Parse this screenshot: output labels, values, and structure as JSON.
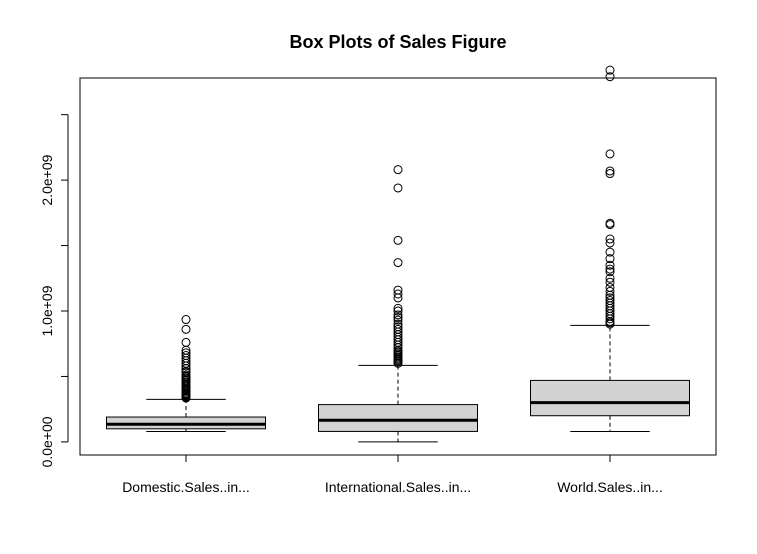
{
  "chart_data": {
    "type": "box",
    "title": "Box Plots of Sales Figure",
    "xlabel": "",
    "ylabel": "",
    "ylim": [
      -100000000,
      2780000000
    ],
    "y_ticks": [
      0,
      500000000,
      1000000000,
      1500000000,
      2000000000,
      2500000000
    ],
    "y_tick_labels": [
      "0.0e+00",
      "",
      "1.0e+09",
      "",
      "2.0e+09",
      ""
    ],
    "categories": [
      "Domestic.Sales..in...",
      "International.Sales..in...",
      "World.Sales..in..."
    ],
    "box_fill": "#d3d3d3",
    "boxes": [
      {
        "name": "Domestic.Sales..in...",
        "whisker_low": 80000000,
        "q1": 100000000,
        "median": 135000000,
        "q3": 190000000,
        "whisker_high": 325000000,
        "outliers": [
          935000000,
          860000000,
          760000000,
          700000000,
          680000000,
          660000000,
          640000000,
          620000000,
          600000000,
          580000000,
          560000000,
          540000000,
          530000000,
          510000000,
          500000000,
          490000000,
          480000000,
          470000000,
          460000000,
          450000000,
          440000000,
          430000000,
          420000000,
          410000000,
          400000000,
          395000000,
          390000000,
          380000000,
          370000000,
          365000000,
          360000000,
          355000000,
          350000000,
          345000000,
          340000000,
          335000000
        ]
      },
      {
        "name": "International.Sales..in...",
        "whisker_low": 0,
        "q1": 80000000,
        "median": 165000000,
        "q3": 285000000,
        "whisker_high": 585000000,
        "outliers": [
          2080000000,
          1940000000,
          1540000000,
          1370000000,
          1160000000,
          1130000000,
          1100000000,
          1020000000,
          1000000000,
          970000000,
          950000000,
          930000000,
          900000000,
          880000000,
          860000000,
          840000000,
          820000000,
          800000000,
          780000000,
          760000000,
          740000000,
          720000000,
          700000000,
          690000000,
          680000000,
          670000000,
          660000000,
          650000000,
          640000000,
          630000000,
          620000000,
          610000000,
          600000000
        ]
      },
      {
        "name": "World.Sales..in...",
        "whisker_low": 80000000,
        "q1": 200000000,
        "median": 300000000,
        "q3": 470000000,
        "whisker_high": 890000000,
        "outliers": [
          2840000000,
          2790000000,
          2200000000,
          2070000000,
          2050000000,
          1670000000,
          1660000000,
          1550000000,
          1520000000,
          1450000000,
          1400000000,
          1350000000,
          1320000000,
          1300000000,
          1250000000,
          1220000000,
          1180000000,
          1150000000,
          1120000000,
          1100000000,
          1080000000,
          1060000000,
          1040000000,
          1020000000,
          1000000000,
          980000000,
          960000000,
          940000000,
          920000000,
          910000000,
          900000000
        ]
      }
    ]
  }
}
